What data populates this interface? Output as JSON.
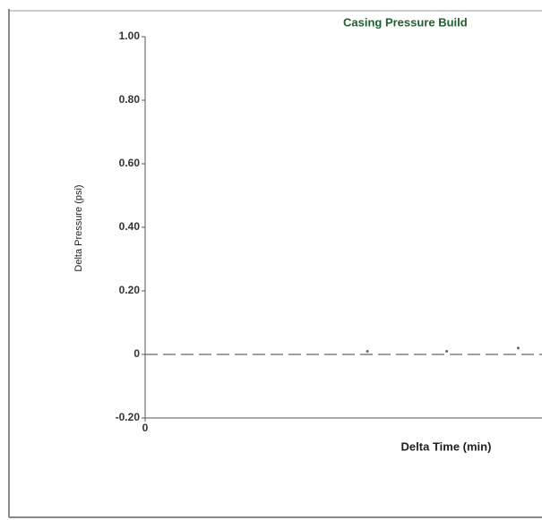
{
  "chart_data": {
    "type": "line",
    "title": "Casing Pressure Build",
    "x_label": "Delta Time (min)",
    "y_label": "Delta Pressure (psi)",
    "xlim": [
      0,
      10
    ],
    "xticks": [
      0
    ],
    "ylim": [
      -0.2,
      1
    ],
    "yticks": [
      {
        "value": -0.2,
        "label": "-0.20"
      },
      0,
      {
        "value": 0.2,
        "label": "0.20"
      },
      {
        "value": 0.4,
        "label": "0.40"
      },
      {
        "value": 0.6,
        "label": "0.60"
      },
      {
        "value": 0.8,
        "label": "0.80"
      },
      {
        "value": 1,
        "label": "1.00"
      }
    ],
    "series": [
      {
        "color": "#666666",
        "dash": true,
        "x": [
          0,
          10
        ],
        "values": [
          0,
          0
        ]
      },
      {
        "color": "#666666",
        "marker": true,
        "x": [
          5.6,
          7.6,
          9.4
        ],
        "values": [
          0.01,
          0.01,
          0.02
        ]
      }
    ]
  }
}
